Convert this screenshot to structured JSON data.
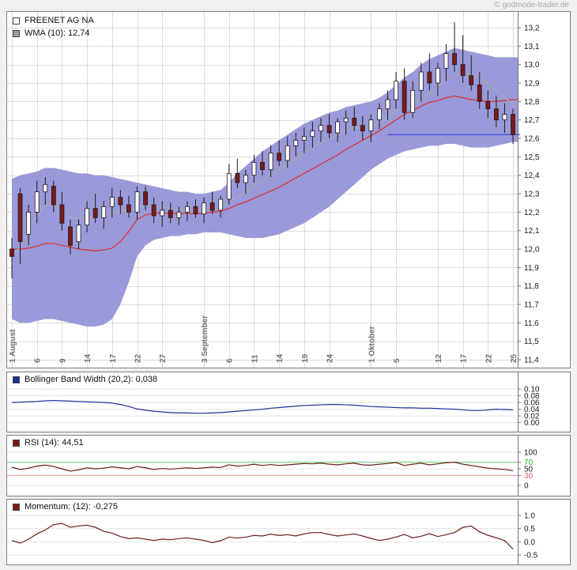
{
  "watermark": "© godmode-trader.de",
  "main_chart": {
    "legend": [
      {
        "label": "FREENET AG NA",
        "swatch": "#ffffff"
      },
      {
        "label": "WMA (10): 12,74",
        "swatch": "#999999"
      }
    ]
  },
  "colors": {
    "band_fill": "#9a9ada",
    "middle_line": "#e03434",
    "wma_line": "#aaaaaa",
    "candle_up": "#ffffff",
    "candle_down": "#7a1a1a",
    "candle_stroke": "#1a1a1a",
    "last_price_line": "#3a3ae0",
    "grid": "#dcdcdc",
    "axis_line": "#777777",
    "axis_text": "#1a1a1a",
    "xlabel_text": "#707070"
  },
  "chart_data": [
    {
      "type": "candlestick",
      "title": "FREENET AG NA",
      "overlays": [
        "Bollinger Bands (20,2)",
        "WMA (10): 12,74"
      ],
      "ylim": [
        11.4,
        13.2
      ],
      "ytick_labels": [
        "13,2",
        "13,1",
        "13,0",
        "12,9",
        "12,8",
        "12,7",
        "12,6",
        "12,5",
        "12,4",
        "12,3",
        "12,2",
        "12,1",
        "12,0",
        "11,9",
        "11,8",
        "11,7",
        "11,6",
        "11,5",
        "11,4"
      ],
      "last_price": 12.62,
      "last_price_from_index": 45,
      "x_ticks": [
        {
          "i": 0,
          "label": "1 August"
        },
        {
          "i": 3,
          "label": "6"
        },
        {
          "i": 6,
          "label": "9"
        },
        {
          "i": 9,
          "label": "14"
        },
        {
          "i": 12,
          "label": "17"
        },
        {
          "i": 15,
          "label": "22"
        },
        {
          "i": 18,
          "label": "27"
        },
        {
          "i": 23,
          "label": "3 September"
        },
        {
          "i": 26,
          "label": "6"
        },
        {
          "i": 29,
          "label": "11"
        },
        {
          "i": 32,
          "label": "14"
        },
        {
          "i": 35,
          "label": "19"
        },
        {
          "i": 38,
          "label": "24"
        },
        {
          "i": 43,
          "label": "1 Oktober"
        },
        {
          "i": 46,
          "label": "5"
        },
        {
          "i": 51,
          "label": "12"
        },
        {
          "i": 54,
          "label": "17"
        },
        {
          "i": 57,
          "label": "22"
        },
        {
          "i": 60,
          "label": "25"
        }
      ],
      "candles": [
        [
          12.0,
          12.06,
          11.84,
          11.96
        ],
        [
          12.3,
          12.33,
          11.92,
          12.04
        ],
        [
          12.08,
          12.24,
          12.02,
          12.2
        ],
        [
          12.2,
          12.37,
          12.14,
          12.31
        ],
        [
          12.31,
          12.39,
          12.24,
          12.35
        ],
        [
          12.34,
          12.37,
          12.2,
          12.24
        ],
        [
          12.24,
          12.31,
          12.1,
          12.14
        ],
        [
          12.12,
          12.16,
          11.97,
          12.02
        ],
        [
          12.04,
          12.16,
          12.0,
          12.13
        ],
        [
          12.13,
          12.26,
          12.09,
          12.22
        ],
        [
          12.22,
          12.3,
          12.14,
          12.17
        ],
        [
          12.17,
          12.26,
          12.11,
          12.23
        ],
        [
          12.23,
          12.33,
          12.17,
          12.28
        ],
        [
          12.28,
          12.32,
          12.19,
          12.24
        ],
        [
          12.24,
          12.29,
          12.17,
          12.2
        ],
        [
          12.2,
          12.34,
          12.16,
          12.31
        ],
        [
          12.31,
          12.34,
          12.21,
          12.24
        ],
        [
          12.24,
          12.28,
          12.14,
          12.18
        ],
        [
          12.18,
          12.26,
          12.12,
          12.21
        ],
        [
          12.21,
          12.25,
          12.14,
          12.17
        ],
        [
          12.17,
          12.23,
          12.13,
          12.2
        ],
        [
          12.2,
          12.26,
          12.15,
          12.23
        ],
        [
          12.23,
          12.27,
          12.17,
          12.19
        ],
        [
          12.19,
          12.28,
          12.14,
          12.25
        ],
        [
          12.25,
          12.31,
          12.19,
          12.21
        ],
        [
          12.21,
          12.29,
          12.17,
          12.27
        ],
        [
          12.27,
          12.46,
          12.24,
          12.41
        ],
        [
          12.41,
          12.49,
          12.33,
          12.36
        ],
        [
          12.36,
          12.43,
          12.3,
          12.4
        ],
        [
          12.4,
          12.51,
          12.36,
          12.47
        ],
        [
          12.47,
          12.53,
          12.4,
          12.43
        ],
        [
          12.43,
          12.56,
          12.39,
          12.52
        ],
        [
          12.52,
          12.59,
          12.45,
          12.48
        ],
        [
          12.48,
          12.61,
          12.44,
          12.56
        ],
        [
          12.56,
          12.63,
          12.5,
          12.59
        ],
        [
          12.59,
          12.66,
          12.52,
          12.61
        ],
        [
          12.61,
          12.69,
          12.55,
          12.64
        ],
        [
          12.64,
          12.71,
          12.58,
          12.67
        ],
        [
          12.67,
          12.73,
          12.6,
          12.63
        ],
        [
          12.63,
          12.71,
          12.58,
          12.69
        ],
        [
          12.69,
          12.75,
          12.62,
          12.71
        ],
        [
          12.71,
          12.77,
          12.64,
          12.67
        ],
        [
          12.67,
          12.72,
          12.59,
          12.64
        ],
        [
          12.64,
          12.73,
          12.58,
          12.7
        ],
        [
          12.7,
          12.79,
          12.65,
          12.76
        ],
        [
          12.76,
          12.86,
          12.7,
          12.81
        ],
        [
          12.81,
          12.96,
          12.76,
          12.91
        ],
        [
          12.91,
          12.98,
          12.7,
          12.74
        ],
        [
          12.74,
          12.91,
          12.71,
          12.86
        ],
        [
          12.86,
          13.01,
          12.8,
          12.96
        ],
        [
          12.96,
          13.06,
          12.86,
          12.9
        ],
        [
          12.9,
          13.01,
          12.83,
          12.98
        ],
        [
          12.98,
          13.11,
          12.91,
          13.06
        ],
        [
          13.06,
          13.23,
          12.96,
          13.0
        ],
        [
          13.0,
          13.16,
          12.9,
          12.94
        ],
        [
          12.94,
          13.05,
          12.86,
          12.89
        ],
        [
          12.89,
          12.96,
          12.76,
          12.8
        ],
        [
          12.8,
          12.86,
          12.71,
          12.76
        ],
        [
          12.76,
          12.83,
          12.66,
          12.7
        ],
        [
          12.7,
          12.79,
          12.63,
          12.73
        ],
        [
          12.73,
          12.76,
          12.57,
          12.62
        ]
      ],
      "band_upper": [
        12.38,
        12.4,
        12.41,
        12.42,
        12.44,
        12.44,
        12.43,
        12.42,
        12.41,
        12.41,
        12.4,
        12.4,
        12.39,
        12.38,
        12.37,
        12.36,
        12.35,
        12.34,
        12.33,
        12.32,
        12.31,
        12.31,
        12.3,
        12.3,
        12.31,
        12.32,
        12.36,
        12.41,
        12.45,
        12.49,
        12.53,
        12.56,
        12.59,
        12.62,
        12.65,
        12.68,
        12.7,
        12.72,
        12.74,
        12.75,
        12.77,
        12.78,
        12.79,
        12.8,
        12.82,
        12.85,
        12.89,
        12.93,
        12.96,
        13.0,
        13.03,
        13.05,
        13.07,
        13.09,
        13.08,
        13.07,
        13.06,
        13.05,
        13.04,
        13.04,
        13.04
      ],
      "band_lower": [
        11.62,
        11.6,
        11.6,
        11.61,
        11.62,
        11.62,
        11.61,
        11.6,
        11.59,
        11.58,
        11.58,
        11.59,
        11.62,
        11.7,
        11.82,
        11.96,
        12.02,
        12.05,
        12.06,
        12.07,
        12.07,
        12.08,
        12.08,
        12.09,
        12.09,
        12.09,
        12.08,
        12.07,
        12.06,
        12.06,
        12.06,
        12.07,
        12.08,
        12.1,
        12.12,
        12.14,
        12.17,
        12.2,
        12.23,
        12.27,
        12.31,
        12.35,
        12.39,
        12.43,
        12.46,
        12.49,
        12.51,
        12.53,
        12.54,
        12.55,
        12.56,
        12.56,
        12.57,
        12.57,
        12.56,
        12.55,
        12.55,
        12.55,
        12.56,
        12.57,
        12.58
      ]
    },
    {
      "type": "line",
      "title": "Bollinger Band Width (20,2): 0,038",
      "current_value": "0,038",
      "swatch": "#1f2f9e",
      "line_color": "#1f2f9e",
      "ylim": [
        0,
        0.1
      ],
      "plot_range": [
        -0.008,
        0.112
      ],
      "yticks": [
        {
          "value": 0.1,
          "label": "0.10"
        },
        {
          "value": 0.08,
          "label": "0.08"
        },
        {
          "value": 0.06,
          "label": "0.06"
        },
        {
          "value": 0.04,
          "label": "0.04"
        },
        {
          "value": 0.02,
          "label": "0.02"
        },
        {
          "value": 0.0,
          "label": "0.00"
        }
      ],
      "values": [
        0.06,
        0.061,
        0.062,
        0.063,
        0.065,
        0.066,
        0.065,
        0.064,
        0.063,
        0.062,
        0.061,
        0.06,
        0.058,
        0.054,
        0.048,
        0.041,
        0.037,
        0.034,
        0.032,
        0.03,
        0.029,
        0.029,
        0.028,
        0.028,
        0.029,
        0.03,
        0.032,
        0.034,
        0.036,
        0.038,
        0.04,
        0.043,
        0.045,
        0.047,
        0.049,
        0.051,
        0.052,
        0.053,
        0.054,
        0.054,
        0.053,
        0.052,
        0.05,
        0.048,
        0.047,
        0.046,
        0.045,
        0.044,
        0.044,
        0.043,
        0.043,
        0.042,
        0.041,
        0.04,
        0.038,
        0.036,
        0.036,
        0.038,
        0.04,
        0.039,
        0.038
      ]
    },
    {
      "type": "line",
      "title": "RSI (14): 44,51",
      "current_value": "44,51",
      "swatch": "#7a1a1a",
      "line_color": "#6b1c1c",
      "ylim": [
        0,
        100
      ],
      "plot_range": [
        -12,
        112
      ],
      "yticks": [
        {
          "value": 100,
          "label": "100"
        },
        {
          "value": 70,
          "label": "70",
          "label_color": "#2eb82e",
          "line_color": "#66cc66"
        },
        {
          "value": 50,
          "label": "50"
        },
        {
          "value": 30,
          "label": "30",
          "label_color": "#e06666",
          "line_color": "#ee9999"
        },
        {
          "value": 0,
          "label": "0"
        }
      ],
      "values": [
        55,
        48,
        52,
        58,
        61,
        57,
        50,
        43,
        47,
        53,
        50,
        52,
        56,
        53,
        50,
        57,
        53,
        48,
        51,
        49,
        51,
        53,
        51,
        53,
        55,
        54,
        62,
        58,
        60,
        64,
        60,
        63,
        60,
        62,
        64,
        66,
        65,
        67,
        64,
        62,
        65,
        67,
        62,
        61,
        64,
        66,
        69,
        60,
        64,
        67,
        62,
        65,
        68,
        70,
        64,
        60,
        56,
        52,
        50,
        48,
        44.5
      ]
    },
    {
      "type": "line",
      "title": "Momentum: (12): -0,275",
      "current_value": "-0,275",
      "swatch": "#7a1a1a",
      "line_color": "#6b1c1c",
      "ylim": [
        -0.5,
        1.0
      ],
      "plot_range": [
        -0.62,
        1.12
      ],
      "yticks": [
        {
          "value": 1.0,
          "label": "1.0"
        },
        {
          "value": 0.5,
          "label": "0.5"
        },
        {
          "value": 0.0,
          "label": "0.0"
        },
        {
          "value": -0.5,
          "label": "-0.5"
        }
      ],
      "values": [
        0.05,
        -0.05,
        0.1,
        0.3,
        0.45,
        0.65,
        0.7,
        0.55,
        0.6,
        0.63,
        0.55,
        0.4,
        0.33,
        0.2,
        0.12,
        0.15,
        0.1,
        0.05,
        0.1,
        0.08,
        0.12,
        0.15,
        0.1,
        0.05,
        -0.03,
        0.04,
        0.18,
        0.14,
        0.18,
        0.24,
        0.22,
        0.29,
        0.24,
        0.27,
        0.22,
        0.3,
        0.35,
        0.35,
        0.28,
        0.22,
        0.26,
        0.3,
        0.22,
        0.13,
        0.05,
        0.1,
        0.18,
        0.28,
        0.15,
        0.21,
        0.31,
        0.2,
        0.27,
        0.35,
        0.55,
        0.6,
        0.38,
        0.25,
        0.15,
        0.05,
        -0.275
      ]
    }
  ]
}
